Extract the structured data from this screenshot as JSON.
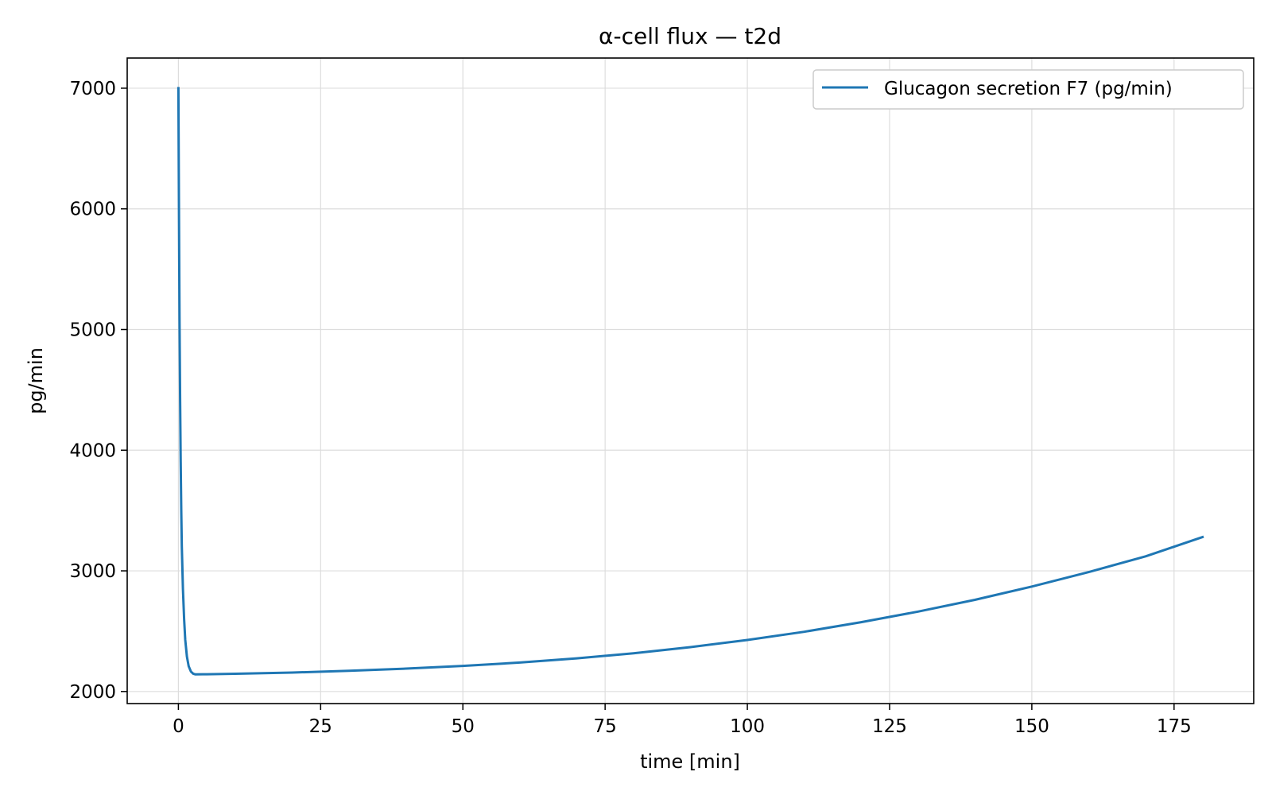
{
  "chart_data": {
    "type": "line",
    "title": "α-cell flux — t2d",
    "xlabel": "time [min]",
    "ylabel": "pg/min",
    "xlim": [
      -9,
      189
    ],
    "ylim": [
      1900,
      7250
    ],
    "xticks": [
      0,
      25,
      50,
      75,
      100,
      125,
      150,
      175
    ],
    "xtick_labels": [
      "0",
      "25",
      "50",
      "75",
      "100",
      "125",
      "150",
      "175"
    ],
    "yticks": [
      2000,
      3000,
      4000,
      5000,
      6000,
      7000
    ],
    "ytick_labels": [
      "2000",
      "3000",
      "4000",
      "5000",
      "6000",
      "7000"
    ],
    "grid": true,
    "legend_position": "top-right",
    "series": [
      {
        "name": "Glucagon secretion F7 (pg/min)",
        "color": "#1f77b4",
        "x": [
          0,
          0.1,
          0.2,
          0.3,
          0.4,
          0.5,
          0.6,
          0.8,
          1.0,
          1.2,
          1.5,
          1.8,
          2.2,
          2.6,
          3,
          5,
          10,
          20,
          30,
          40,
          50,
          60,
          70,
          80,
          90,
          100,
          110,
          120,
          130,
          140,
          150,
          160,
          170,
          180
        ],
        "y": [
          7000,
          6000,
          5100,
          4400,
          3900,
          3500,
          3200,
          2850,
          2600,
          2430,
          2290,
          2210,
          2165,
          2148,
          2142,
          2143,
          2147,
          2157,
          2172,
          2190,
          2212,
          2240,
          2275,
          2317,
          2368,
          2427,
          2495,
          2575,
          2662,
          2760,
          2870,
          2990,
          3120,
          3280
        ]
      }
    ]
  }
}
